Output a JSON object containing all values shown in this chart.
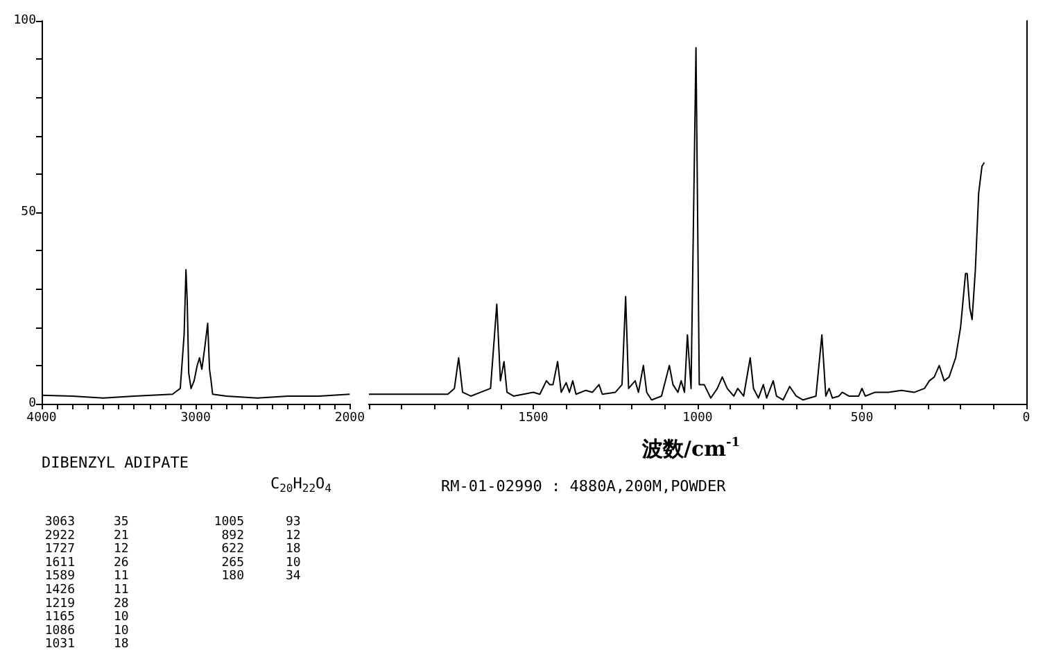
{
  "chart_data": [
    {
      "type": "line",
      "title": "DIBENZYL ADIPATE",
      "subtitle": "C$_{20}$H$_{22}$O$_{4}$",
      "marker": "none",
      "xlim": [
        4000,
        2000
      ],
      "xticks": [
        4000,
        {
          "value": 3900,
          "label": null
        },
        {
          "value": 3800,
          "label": null
        },
        {
          "value": 3700,
          "label": null
        },
        {
          "value": 3600,
          "label": null
        },
        {
          "value": 3500,
          "label": null
        },
        {
          "value": 3400,
          "label": null
        },
        {
          "value": 3300,
          "label": null
        },
        {
          "value": 3200,
          "label": null
        },
        {
          "value": 3100,
          "label": null
        },
        3000,
        {
          "value": 2900,
          "label": null
        },
        {
          "value": 2800,
          "label": null
        },
        {
          "value": 2700,
          "label": null
        },
        {
          "value": 2600,
          "label": null
        },
        {
          "value": 2500,
          "label": null
        },
        {
          "value": 2400,
          "label": null
        },
        {
          "value": 2300,
          "label": null
        },
        {
          "value": 2200,
          "label": null
        },
        {
          "value": 2100,
          "label": null
        },
        2000
      ],
      "ylim": [
        0,
        100
      ],
      "yticks": [
        0,
        {
          "value": 10,
          "label": null
        },
        {
          "value": 20,
          "label": null
        },
        {
          "value": 30,
          "label": null
        },
        {
          "value": 40,
          "label": null
        },
        50,
        {
          "value": 60,
          "label": null
        },
        {
          "value": 70,
          "label": null
        },
        {
          "value": 80,
          "label": null
        },
        {
          "value": 90,
          "label": null
        },
        100
      ],
      "x": [
        4000,
        3800,
        3600,
        3400,
        3150,
        3100,
        3075,
        3063,
        3055,
        3045,
        3030,
        3010,
        2990,
        2975,
        2960,
        2940,
        2922,
        2910,
        2900,
        2890,
        2800,
        2600,
        2400,
        2200,
        2000
      ],
      "series": [
        {
          "color": "#000000",
          "values": [
            2.2,
            2,
            1.5,
            2,
            2.5,
            4,
            18,
            35,
            27,
            8,
            4,
            6,
            10,
            12,
            9,
            15,
            21,
            9,
            6,
            2.5,
            2,
            1.5,
            2,
            2,
            2.5
          ]
        }
      ],
      "annotations": [
        "3063 35",
        "2922 21",
        "1727 12",
        "1611 26",
        "1589 11",
        "1426 11",
        "1219 28",
        "1165 10",
        "1086 10",
        "1031 18",
        "1005 93",
        "892 12",
        "622 18",
        "265 10",
        "180 34"
      ]
    },
    {
      "type": "line",
      "xlabel": "波数/cm$^{-1}$",
      "marker": "none",
      "tick_labels": "x",
      "xlim": [
        2000,
        0
      ],
      "xticks": [
        {
          "value": 2000,
          "label": null
        },
        {
          "value": 1900,
          "label": null
        },
        {
          "value": 1800,
          "label": null
        },
        {
          "value": 1700,
          "label": null
        },
        {
          "value": 1600,
          "label": null
        },
        1500,
        {
          "value": 1400,
          "label": null
        },
        {
          "value": 1300,
          "label": null
        },
        {
          "value": 1200,
          "label": null
        },
        {
          "value": 1100,
          "label": null
        },
        1000,
        {
          "value": 900,
          "label": null
        },
        {
          "value": 800,
          "label": null
        },
        {
          "value": 700,
          "label": null
        },
        {
          "value": 600,
          "label": null
        },
        500,
        {
          "value": 400,
          "label": null
        },
        {
          "value": 300,
          "label": null
        },
        {
          "value": 200,
          "label": null
        },
        {
          "value": 100,
          "label": null
        },
        0
      ],
      "ylim": [
        0,
        100
      ],
      "x": [
        2000,
        1900,
        1760,
        1740,
        1727,
        1715,
        1690,
        1660,
        1630,
        1611,
        1600,
        1589,
        1580,
        1560,
        1530,
        1500,
        1480,
        1460,
        1450,
        1440,
        1426,
        1415,
        1400,
        1390,
        1380,
        1370,
        1340,
        1320,
        1300,
        1290,
        1250,
        1230,
        1219,
        1210,
        1190,
        1180,
        1165,
        1155,
        1140,
        1110,
        1086,
        1075,
        1060,
        1050,
        1040,
        1031,
        1020,
        1005,
        995,
        980,
        960,
        940,
        925,
        910,
        890,
        878,
        860,
        840,
        830,
        815,
        800,
        790,
        770,
        760,
        740,
        720,
        700,
        680,
        640,
        622,
        610,
        600,
        590,
        570,
        560,
        540,
        510,
        500,
        490,
        460,
        420,
        380,
        340,
        310,
        295,
        280,
        265,
        250,
        235,
        215,
        200,
        185,
        180,
        172,
        165,
        155,
        145,
        135,
        128
      ],
      "series": [
        {
          "color": "#000000",
          "values": [
            2.5,
            2.5,
            2.5,
            4,
            12,
            3,
            2,
            3,
            4,
            26,
            6,
            11,
            3,
            2,
            2.5,
            3,
            2.5,
            6,
            5,
            5,
            11,
            3,
            5.5,
            3,
            6,
            2.5,
            3.5,
            3,
            5,
            2.5,
            3,
            5,
            28,
            4,
            6,
            3,
            10,
            3,
            1,
            2,
            10,
            5,
            3,
            6,
            3,
            18,
            4,
            93,
            5,
            5,
            1.5,
            4,
            7,
            4,
            2,
            4,
            2,
            12,
            4,
            1.5,
            5,
            1.5,
            6,
            2,
            1,
            4.5,
            2,
            1,
            2,
            18,
            2,
            4,
            1.5,
            2,
            3,
            2,
            2,
            4,
            2,
            3,
            3,
            3.5,
            3,
            4,
            6,
            7,
            10,
            6,
            7,
            12,
            20,
            34,
            34,
            25,
            22,
            35,
            55,
            62,
            63
          ]
        }
      ],
      "annotations": [
        "RM-01-02990 : 4880A,200M,POWDER"
      ]
    }
  ]
}
